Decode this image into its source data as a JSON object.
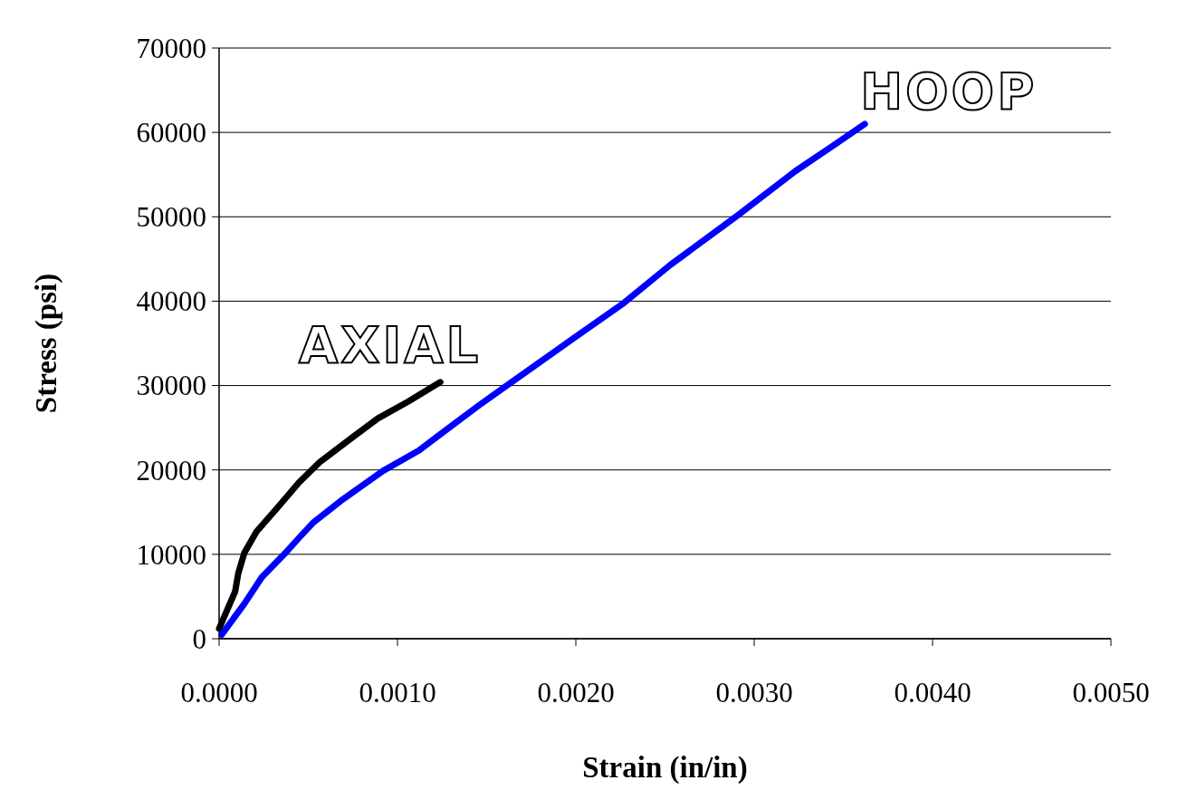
{
  "chart_data": {
    "type": "line",
    "xlabel": "Strain (in/in)",
    "ylabel": "Stress (psi)",
    "xlim": [
      0,
      0.005
    ],
    "xticks": [
      {
        "value": 0,
        "label": "0.0000"
      },
      {
        "value": 0.001,
        "label": "0.0010"
      },
      {
        "value": 0.002,
        "label": "0.0020"
      },
      {
        "value": 0.003,
        "label": "0.0030"
      },
      {
        "value": 0.004,
        "label": "0.0040"
      },
      {
        "value": 0.005,
        "label": "0.0050"
      }
    ],
    "ylim": [
      0,
      70000
    ],
    "yticks": [
      0,
      10000,
      20000,
      30000,
      40000,
      50000,
      60000,
      70000
    ],
    "grid": "y",
    "series": [
      {
        "name": "AXIAL",
        "color": "#000000",
        "x": [
          0,
          9e-05,
          0.000107,
          0.000142,
          0.00021,
          0.00033,
          0.000447,
          0.000563,
          0.00075,
          0.00089,
          0.00106,
          0.00124
        ],
        "values": [
          1200,
          5600,
          7700,
          10200,
          12700,
          15600,
          18500,
          20900,
          23900,
          26100,
          28100,
          30400
        ]
      },
      {
        "name": "HOOP",
        "color": "#0000ff",
        "x": [
          1.5e-05,
          0.00014,
          0.00024,
          0.00036,
          0.00045,
          0.00053,
          0.00068,
          0.00092,
          0.00112,
          0.00122,
          0.00146,
          0.0016,
          0.002,
          0.00227,
          0.00253,
          0.00291,
          0.00323,
          0.00344,
          0.00362
        ],
        "values": [
          500,
          4100,
          7300,
          9900,
          12000,
          13800,
          16300,
          19900,
          22300,
          23900,
          27700,
          29800,
          35800,
          39800,
          44300,
          50200,
          55400,
          58400,
          61000
        ]
      }
    ]
  }
}
